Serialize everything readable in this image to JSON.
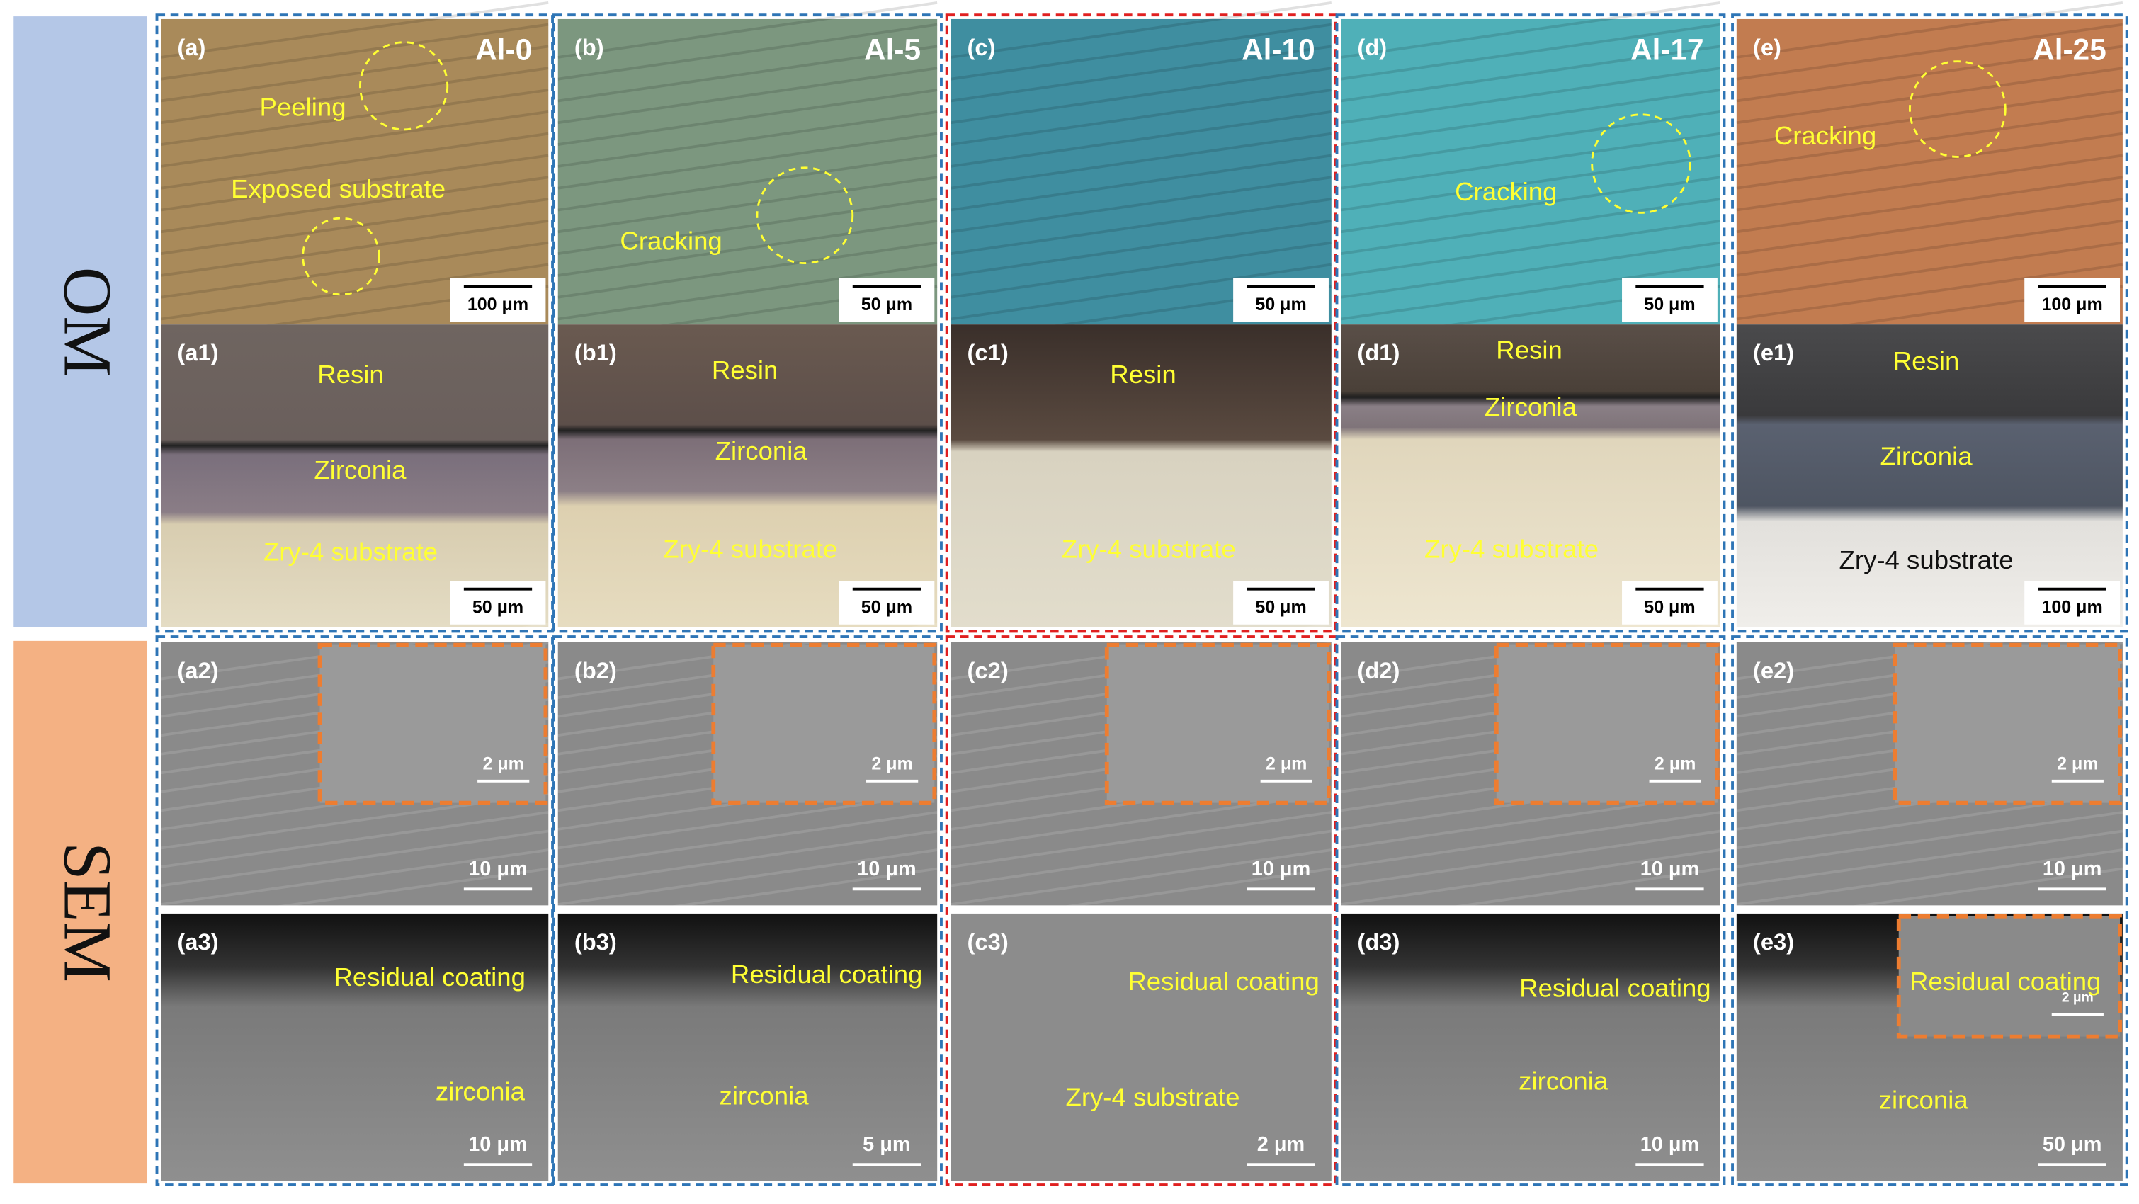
{
  "row_labels": [
    "OM",
    "SEM"
  ],
  "columns": [
    {
      "title": "Al-0",
      "panels": [
        {
          "label": "(a)",
          "texts": [
            "Peeling",
            "Exposed substrate"
          ],
          "scale": "100 μm"
        },
        {
          "label": "(a1)",
          "texts": [
            "Resin",
            "Zirconia",
            "Zry-4 substrate"
          ],
          "scale": "50 μm"
        },
        {
          "label": "(a2)",
          "texts": [],
          "scale": "10 μm",
          "inset_scale": "2 μm"
        },
        {
          "label": "(a3)",
          "texts": [
            "Residual coating",
            "zirconia"
          ],
          "scale": "10 μm"
        }
      ]
    },
    {
      "title": "Al-5",
      "panels": [
        {
          "label": "(b)",
          "texts": [
            "Cracking"
          ],
          "scale": "50 μm"
        },
        {
          "label": "(b1)",
          "texts": [
            "Resin",
            "Zirconia",
            "Zry-4 substrate"
          ],
          "scale": "50 μm"
        },
        {
          "label": "(b2)",
          "texts": [],
          "scale": "10 μm",
          "inset_scale": "2 μm"
        },
        {
          "label": "(b3)",
          "texts": [
            "Residual coating",
            "zirconia"
          ],
          "scale": "5 μm"
        }
      ]
    },
    {
      "title": "Al-10",
      "panels": [
        {
          "label": "(c)",
          "texts": [],
          "scale": "50 μm"
        },
        {
          "label": "(c1)",
          "texts": [
            "Resin",
            "Zry-4 substrate"
          ],
          "scale": "50 μm"
        },
        {
          "label": "(c2)",
          "texts": [],
          "scale": "10 μm",
          "inset_scale": "2 μm"
        },
        {
          "label": "(c3)",
          "texts": [
            "Residual coating",
            "Zry-4 substrate"
          ],
          "scale": "2 μm"
        }
      ]
    },
    {
      "title": "Al-17",
      "panels": [
        {
          "label": "(d)",
          "texts": [
            "Cracking"
          ],
          "scale": "50 μm"
        },
        {
          "label": "(d1)",
          "texts": [
            "Resin",
            "Zirconia",
            "Zry-4 substrate"
          ],
          "scale": "50 μm"
        },
        {
          "label": "(d2)",
          "texts": [],
          "scale": "10 μm",
          "inset_scale": "2 μm"
        },
        {
          "label": "(d3)",
          "texts": [
            "Residual coating",
            "zirconia"
          ],
          "scale": "10 μm"
        }
      ]
    },
    {
      "title": "Al-25",
      "panels": [
        {
          "label": "(e)",
          "texts": [
            "Cracking"
          ],
          "scale": "100 μm"
        },
        {
          "label": "(e1)",
          "texts": [
            "Resin",
            "Zirconia",
            "Zry-4 substrate"
          ],
          "scale": "100 μm"
        },
        {
          "label": "(e2)",
          "texts": [],
          "scale": "10 μm",
          "inset_scale": "2 μm"
        },
        {
          "label": "(e3)",
          "texts": [
            "Residual coating",
            "zirconia"
          ],
          "scale": "50 μm",
          "inset_scale": "2 μm"
        }
      ]
    }
  ]
}
